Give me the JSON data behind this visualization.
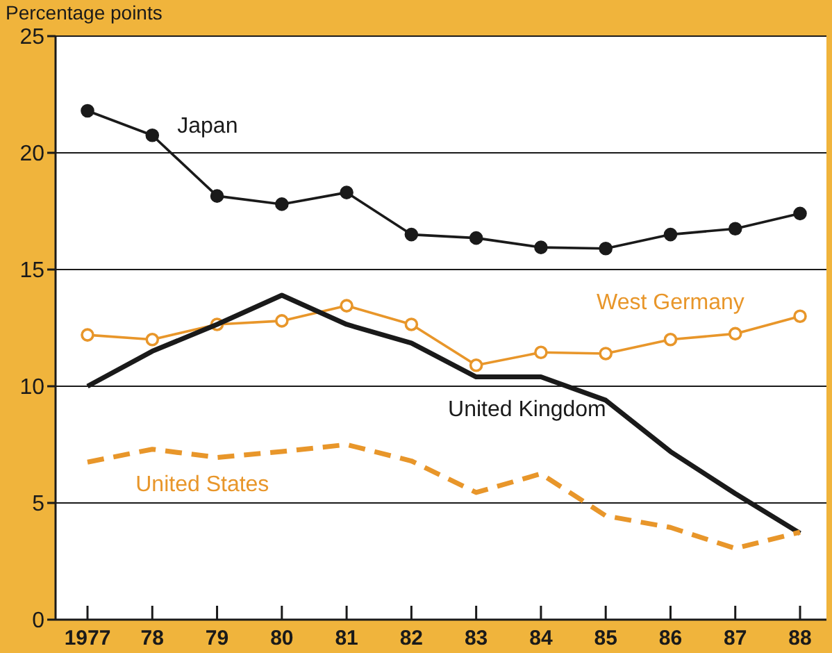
{
  "chart_data": {
    "type": "line",
    "ylabel": "Percentage points",
    "categories": [
      "1977",
      "78",
      "79",
      "80",
      "81",
      "82",
      "83",
      "84",
      "85",
      "86",
      "87",
      "88"
    ],
    "ylim": [
      0,
      25
    ],
    "yticks": [
      0,
      5,
      10,
      15,
      20,
      25
    ],
    "grid": "y",
    "legend": false,
    "series": [
      {
        "name": "Japan",
        "color": "#1a1a1a",
        "marker": "circle",
        "line_style": "solid",
        "values": [
          21.8,
          20.75,
          18.15,
          17.8,
          18.3,
          16.5,
          16.35,
          15.95,
          15.9,
          16.5,
          16.75,
          17.4
        ]
      },
      {
        "name": "West Germany",
        "color": "#e8962a",
        "marker": "circle",
        "line_style": "solid",
        "values": [
          12.2,
          12.0,
          12.65,
          12.8,
          13.45,
          12.65,
          10.9,
          11.45,
          11.4,
          12.0,
          12.25,
          13.0
        ]
      },
      {
        "name": "United Kingdom",
        "color": "#1a1a1a",
        "marker": "none",
        "line_style": "solid",
        "values": [
          10.0,
          11.5,
          12.65,
          13.9,
          12.65,
          11.85,
          10.4,
          10.4,
          9.4,
          7.2,
          5.4,
          3.7
        ]
      },
      {
        "name": "United States",
        "color": "#e8962a",
        "marker": "none",
        "line_style": "dashed",
        "values": [
          6.75,
          7.3,
          6.95,
          7.2,
          7.5,
          6.8,
          5.45,
          6.25,
          4.45,
          3.95,
          3.05,
          3.75
        ]
      }
    ]
  }
}
